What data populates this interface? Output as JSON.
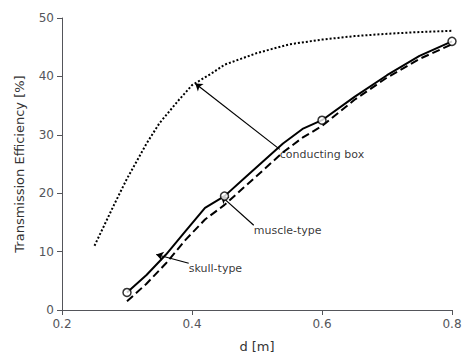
{
  "chart_data": {
    "type": "line",
    "xlabel": "d [m]",
    "ylabel": "Transmission Efficiency [%]",
    "xlim": [
      0.2,
      0.8
    ],
    "ylim": [
      0,
      50
    ],
    "xticks": [
      0.2,
      0.4,
      0.6,
      0.8
    ],
    "yticks": [
      0,
      10,
      20,
      30,
      40,
      50
    ],
    "grid": false,
    "series": [
      {
        "type": "line",
        "line_style": "dotted",
        "color": "#000000",
        "x": [
          0.25,
          0.28,
          0.3,
          0.33,
          0.35,
          0.38,
          0.4,
          0.43,
          0.45,
          0.5,
          0.55,
          0.6,
          0.65,
          0.7,
          0.75,
          0.8
        ],
        "values": [
          11.0,
          18.0,
          22.5,
          28.5,
          32.0,
          36.0,
          38.5,
          40.5,
          42.0,
          44.0,
          45.5,
          46.3,
          46.9,
          47.3,
          47.6,
          47.8
        ]
      },
      {
        "type": "line",
        "line_style": "dashed",
        "color": "#000000",
        "x": [
          0.3,
          0.33,
          0.36,
          0.39,
          0.42,
          0.45,
          0.48,
          0.51,
          0.54,
          0.57,
          0.6,
          0.65,
          0.7,
          0.75,
          0.8
        ],
        "values": [
          1.5,
          4.5,
          8.0,
          12.0,
          15.5,
          18.0,
          21.0,
          24.0,
          27.0,
          29.5,
          31.5,
          36.0,
          39.8,
          43.0,
          45.5
        ]
      },
      {
        "type": "line",
        "line_style": "solid",
        "color": "#000000",
        "x": [
          0.3,
          0.33,
          0.36,
          0.39,
          0.42,
          0.45,
          0.48,
          0.51,
          0.54,
          0.57,
          0.6,
          0.65,
          0.7,
          0.75,
          0.8
        ],
        "values": [
          3.0,
          6.0,
          9.5,
          13.5,
          17.5,
          19.5,
          22.5,
          25.5,
          28.5,
          31.0,
          32.5,
          36.5,
          40.2,
          43.5,
          46.0
        ]
      },
      {
        "type": "scatter",
        "marker": "circle",
        "color": "#000000",
        "x": [
          0.3,
          0.45,
          0.6,
          0.8
        ],
        "values": [
          3.0,
          19.5,
          32.5,
          46.0
        ]
      }
    ],
    "annotations": [
      {
        "text": "conducting box",
        "x": 0.405,
        "y": 38.8,
        "text_x": 0.535,
        "text_y": 27.5
      },
      {
        "text": "muscle-type",
        "x": 0.445,
        "y": 19.5,
        "text_x": 0.495,
        "text_y": 14.5
      },
      {
        "text": "skull-type",
        "x": 0.345,
        "y": 9.5,
        "text_x": 0.395,
        "text_y": 8.0
      }
    ]
  }
}
